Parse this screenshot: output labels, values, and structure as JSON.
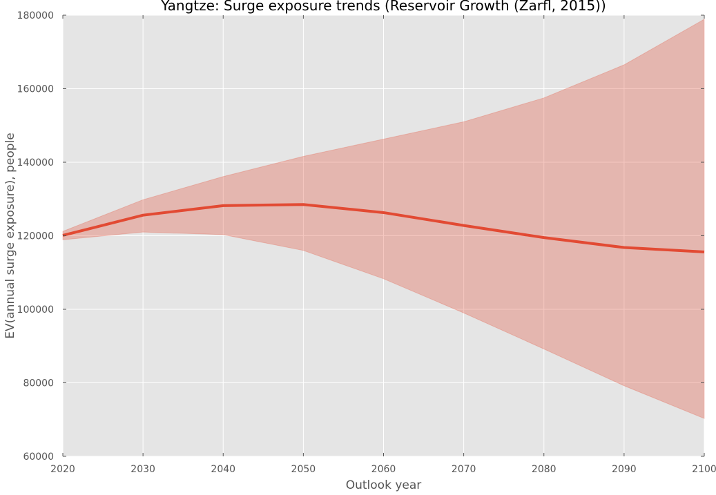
{
  "chart_data": {
    "type": "line",
    "title": "Yangtze: Surge exposure trends (Reservoir Growth (Zarfl, 2015))",
    "xlabel": "Outlook year",
    "ylabel": "EV(annual surge exposure), people",
    "x": [
      2020,
      2030,
      2040,
      2050,
      2060,
      2070,
      2080,
      2090,
      2100
    ],
    "xlim": [
      2020,
      2100
    ],
    "ylim": [
      60000,
      180000
    ],
    "xticks": [
      "2020",
      "2030",
      "2040",
      "2050",
      "2060",
      "2070",
      "2080",
      "2090",
      "2100"
    ],
    "yticks": [
      "60000",
      "80000",
      "100000",
      "120000",
      "140000",
      "160000",
      "180000"
    ],
    "grid": true,
    "background": "#e5e5e5",
    "series": [
      {
        "values": [
          120100,
          125600,
          128200,
          128500,
          126300,
          122800,
          119500,
          116800,
          115600
        ],
        "color": "#e24a33"
      }
    ],
    "band": {
      "upper": [
        121200,
        129800,
        136100,
        141600,
        146300,
        151000,
        157500,
        166500,
        178900
      ],
      "lower": [
        118900,
        121000,
        120300,
        116000,
        108300,
        99000,
        89200,
        79200,
        70300
      ],
      "color": "#e24a33",
      "opacity": 0.3
    }
  }
}
